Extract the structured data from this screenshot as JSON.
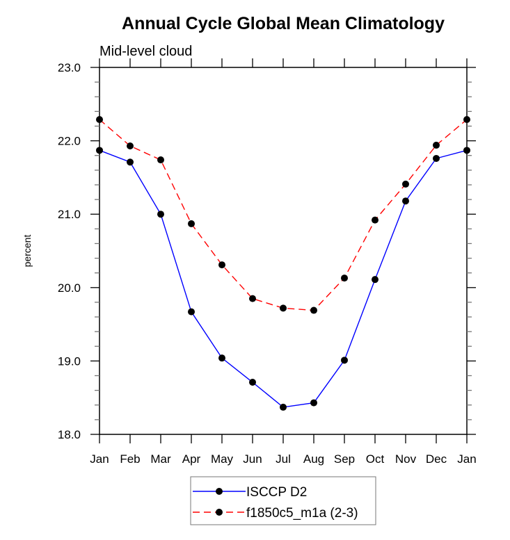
{
  "chart_data": {
    "type": "line",
    "title": "Annual Cycle Global Mean Climatology",
    "subtitle": "Mid-level cloud",
    "xlabel": "",
    "ylabel": "percent",
    "categories": [
      "Jan",
      "Feb",
      "Mar",
      "Apr",
      "May",
      "Jun",
      "Jul",
      "Aug",
      "Sep",
      "Oct",
      "Nov",
      "Dec",
      "Jan"
    ],
    "ylim": [
      18.0,
      23.0
    ],
    "yticks": [
      "18.0",
      "19.0",
      "20.0",
      "21.0",
      "22.0",
      "23.0"
    ],
    "ytick_values": [
      18.0,
      19.0,
      20.0,
      21.0,
      22.0,
      23.0
    ],
    "yminor_step": 0.2,
    "grid": false,
    "legend_position": "bottom-center",
    "series": [
      {
        "name": "ISCCP D2",
        "color": "#0000ff",
        "line_style": "solid",
        "marker": "filled-circle",
        "marker_color": "#000000",
        "values": [
          21.87,
          21.71,
          21.0,
          19.67,
          19.04,
          18.71,
          18.37,
          18.43,
          19.01,
          20.11,
          21.18,
          21.76,
          21.87
        ]
      },
      {
        "name": "f1850c5_m1a (2-3)",
        "color": "#ff0000",
        "line_style": "dashed",
        "marker": "filled-circle",
        "marker_color": "#000000",
        "values": [
          22.29,
          21.93,
          21.74,
          20.87,
          20.31,
          19.85,
          19.72,
          19.69,
          20.13,
          20.92,
          21.41,
          21.94,
          22.29
        ]
      }
    ]
  }
}
